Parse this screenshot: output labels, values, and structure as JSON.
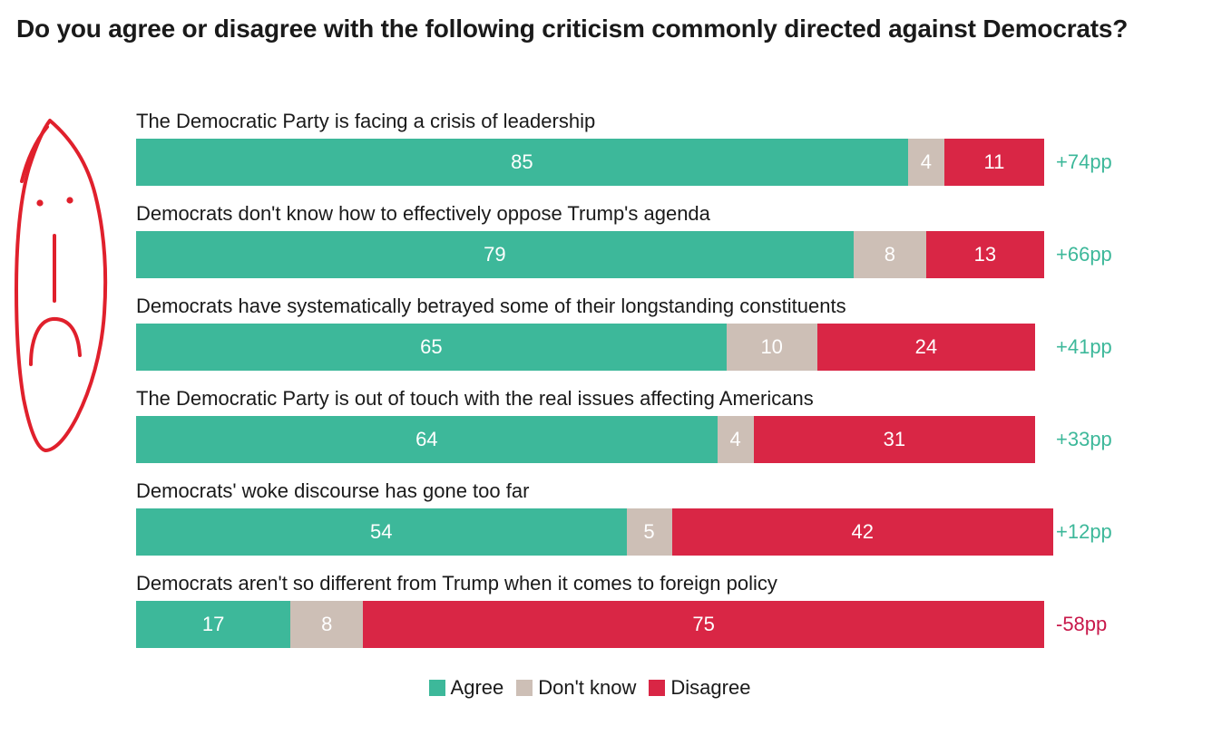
{
  "title": "Do you agree or disagree with the following criticism commonly directed against Democrats?",
  "colors": {
    "agree": "#3db89a",
    "dont_know": "#cdbfb6",
    "disagree": "#d92645",
    "positive_margin": "#3db89a",
    "negative_margin": "#c8184a",
    "doodle": "#e0202c"
  },
  "doodle_icon": "sad-face-doodle",
  "chart_data": {
    "type": "bar",
    "orientation": "horizontal",
    "stacked": true,
    "xlim": [
      0,
      100
    ],
    "categories": [
      "The Democratic Party is facing a crisis of leadership",
      "Democrats don't know how to effectively oppose Trump's agenda",
      "Democrats have systematically betrayed some of their longstanding constituents",
      "The Democratic Party is out of touch with the real issues affecting Americans",
      "Democrats' woke discourse has gone too far",
      "Democrats aren't so different from Trump when it comes to foreign policy"
    ],
    "series": [
      {
        "name": "Agree",
        "color": "#3db89a",
        "values": [
          85,
          79,
          65,
          64,
          54,
          17
        ]
      },
      {
        "name": "Don't know",
        "color": "#cdbfb6",
        "values": [
          4,
          8,
          10,
          4,
          5,
          8
        ]
      },
      {
        "name": "Disagree",
        "color": "#d92645",
        "values": [
          11,
          13,
          24,
          31,
          42,
          75
        ]
      }
    ],
    "net_labels": [
      "+74pp",
      "+66pp",
      "+41pp",
      "+33pp",
      "+12pp",
      "-58pp"
    ],
    "legend": [
      "Agree",
      "Don't know",
      "Disagree"
    ],
    "legend_position": "bottom"
  }
}
